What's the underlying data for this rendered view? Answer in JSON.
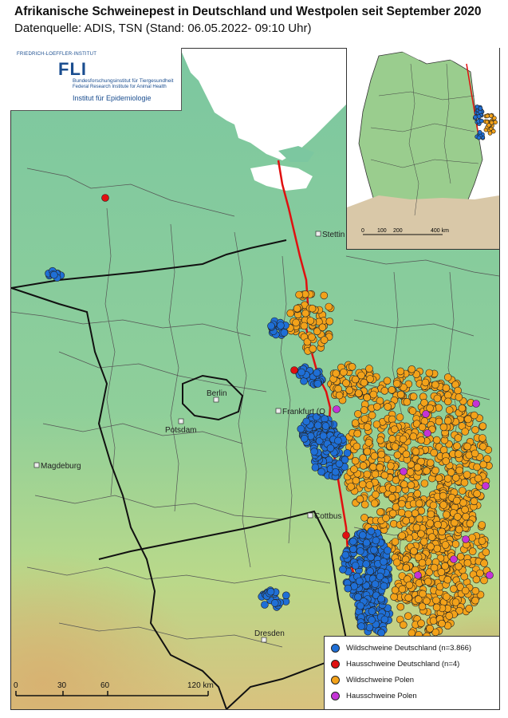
{
  "header": {
    "title": "Afrikanische Schweinepest in Deutschland und Westpolen seit September 2020",
    "subtitle": "Datenquelle: ADIS, TSN (Stand: 06.05.2022- 09:10 Uhr)"
  },
  "logo": {
    "top_text": "FRIEDRICH-LOEFFLER-INSTITUT",
    "fli": "FLI",
    "line_de": "Bundesforschungsinstitut für Tiergesundheit",
    "line_en": "Federal Research Institute for Animal Health",
    "institute": "Institut für Epidemiologie"
  },
  "cities": [
    {
      "name": "Stettin"
    },
    {
      "name": "Berlin"
    },
    {
      "name": "Potsdam"
    },
    {
      "name": "Frankfurt (O"
    },
    {
      "name": "Magdeburg"
    },
    {
      "name": "Cottbus"
    },
    {
      "name": "Dresden"
    }
  ],
  "legend": {
    "items": [
      {
        "label": "Wildschweine Deutschland (n=3.866)",
        "color": "#1f6fd6"
      },
      {
        "label": "Hausschweine Deutschland (n=4)",
        "color": "#e01010"
      },
      {
        "label": "Wildschweine Polen",
        "color": "#f3a21a"
      },
      {
        "label": "Hausschweine Polen",
        "color": "#c433d6"
      }
    ]
  },
  "scale": {
    "labels": [
      "0",
      "30",
      "60",
      "120 km"
    ]
  },
  "inset": {
    "scale_labels": [
      "0",
      "100",
      "200",
      "400 km"
    ]
  },
  "colors": {
    "wild_de": "#1f6fd6",
    "domestic_de": "#e01010",
    "wild_pl": "#f3a21a",
    "domestic_pl": "#c433d6",
    "border": "#e01010"
  }
}
